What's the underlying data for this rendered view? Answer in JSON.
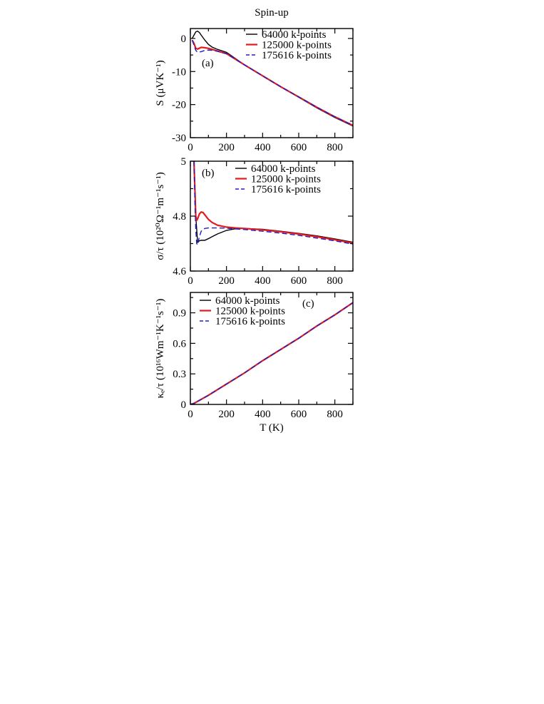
{
  "figure": {
    "title": "Spin-up"
  },
  "colors": {
    "k64000": "#000000",
    "k125000": "#e41a1c",
    "k175616": "#1f1fc8"
  },
  "chart_data": [
    {
      "type": "line",
      "panel_label": "(a)",
      "xlabel": "",
      "ylabel": "S (μVK⁻¹)",
      "xlim": [
        0,
        900
      ],
      "ylim": [
        -30,
        3
      ],
      "xticks": [
        0,
        200,
        400,
        600,
        800
      ],
      "xticklabels": [
        "0",
        "200",
        "400",
        "600",
        "800"
      ],
      "yticks": [
        0,
        -10,
        -20,
        -30
      ],
      "yticklabels": [
        "0",
        "-10",
        "-20",
        "-30"
      ],
      "legend_position": "top-right",
      "series": [
        {
          "name": "64000 k-points",
          "style": "solid",
          "x": [
            10,
            20,
            30,
            40,
            50,
            60,
            80,
            100,
            120,
            150,
            200,
            300,
            400,
            500,
            600,
            700,
            800,
            900
          ],
          "y": [
            0.0,
            1.0,
            2.0,
            2.2,
            1.8,
            1.0,
            -0.5,
            -1.8,
            -2.6,
            -3.3,
            -4.2,
            -8.0,
            -11.3,
            -14.6,
            -17.8,
            -21.0,
            -23.9,
            -26.5
          ]
        },
        {
          "name": "125000 k-points",
          "style": "solid",
          "x": [
            10,
            20,
            30,
            40,
            60,
            80,
            100,
            120,
            150,
            200,
            300,
            400,
            500,
            600,
            700,
            800,
            900
          ],
          "y": [
            -0.5,
            -1.5,
            -3.0,
            -3.2,
            -2.7,
            -2.8,
            -3.0,
            -3.3,
            -3.8,
            -4.6,
            -8.0,
            -11.3,
            -14.6,
            -17.7,
            -20.8,
            -23.7,
            -26.3
          ]
        },
        {
          "name": "175616 k-points",
          "style": "dashed",
          "x": [
            10,
            20,
            30,
            40,
            60,
            80,
            100,
            120,
            150,
            200,
            300,
            400,
            500,
            600,
            700,
            800,
            900
          ],
          "y": [
            -0.5,
            -2.0,
            -3.6,
            -4.2,
            -4.0,
            -3.6,
            -3.5,
            -3.6,
            -3.9,
            -4.6,
            -8.0,
            -11.3,
            -14.6,
            -17.7,
            -20.8,
            -23.7,
            -26.3
          ]
        }
      ]
    },
    {
      "type": "line",
      "panel_label": "(b)",
      "xlabel": "",
      "ylabel": "σ/τ (10²⁰Ω⁻¹m⁻¹s⁻¹)",
      "xlim": [
        0,
        900
      ],
      "ylim": [
        4.6,
        5.0
      ],
      "xticks": [
        0,
        200,
        400,
        600,
        800
      ],
      "xticklabels": [
        "0",
        "200",
        "400",
        "600",
        "800"
      ],
      "yticks": [
        4.6,
        4.8,
        5.0
      ],
      "yticklabels": [
        "4.6",
        "4.8",
        "5"
      ],
      "legend_position": "top-right",
      "series": [
        {
          "name": "64000 k-points",
          "style": "solid",
          "x": [
            20,
            30,
            40,
            50,
            60,
            80,
            100,
            120,
            150,
            200,
            250,
            300,
            400,
            500,
            600,
            700,
            800,
            900
          ],
          "y": [
            5.0,
            4.8,
            4.705,
            4.71,
            4.712,
            4.712,
            4.718,
            4.725,
            4.735,
            4.748,
            4.754,
            4.755,
            4.752,
            4.745,
            4.737,
            4.728,
            4.717,
            4.705
          ]
        },
        {
          "name": "125000 k-points",
          "style": "solid",
          "x": [
            20,
            25,
            30,
            35,
            40,
            50,
            60,
            70,
            80,
            100,
            120,
            150,
            200,
            250,
            300,
            400,
            500,
            600,
            700,
            800,
            900
          ],
          "y": [
            5.0,
            4.9,
            4.8,
            4.785,
            4.79,
            4.808,
            4.815,
            4.813,
            4.805,
            4.788,
            4.777,
            4.767,
            4.76,
            4.757,
            4.755,
            4.75,
            4.743,
            4.735,
            4.725,
            4.714,
            4.702
          ]
        },
        {
          "name": "175616 k-points",
          "style": "dashed",
          "x": [
            20,
            25,
            30,
            35,
            40,
            50,
            60,
            70,
            80,
            100,
            150,
            200,
            300,
            400,
            500,
            600,
            700,
            800,
            900
          ],
          "y": [
            5.0,
            4.85,
            4.75,
            4.7,
            4.695,
            4.725,
            4.745,
            4.752,
            4.755,
            4.757,
            4.757,
            4.756,
            4.751,
            4.745,
            4.738,
            4.73,
            4.72,
            4.71,
            4.698
          ]
        }
      ]
    },
    {
      "type": "line",
      "panel_label": "(c)",
      "xlabel": "T (K)",
      "ylabel": "κₑ/τ (10¹⁶Wm⁻¹K⁻¹s⁻¹)",
      "xlim": [
        0,
        900
      ],
      "ylim": [
        0,
        1.1
      ],
      "xticks": [
        0,
        200,
        400,
        600,
        800
      ],
      "xticklabels": [
        "0",
        "200",
        "400",
        "600",
        "800"
      ],
      "yticks": [
        0,
        0.3,
        0.6,
        0.9
      ],
      "yticklabels": [
        "0",
        "0.3",
        "0.6",
        "0.9"
      ],
      "legend_position": "top-left",
      "series": [
        {
          "name": "64000 k-points",
          "style": "solid",
          "x": [
            0,
            20,
            50,
            100,
            200,
            300,
            400,
            500,
            600,
            700,
            800,
            900
          ],
          "y": [
            0.0,
            0.01,
            0.04,
            0.09,
            0.2,
            0.31,
            0.43,
            0.54,
            0.65,
            0.77,
            0.88,
            1.0
          ]
        },
        {
          "name": "125000 k-points",
          "style": "solid",
          "x": [
            0,
            20,
            50,
            100,
            200,
            300,
            400,
            500,
            600,
            700,
            800,
            900
          ],
          "y": [
            0.0,
            0.01,
            0.04,
            0.09,
            0.2,
            0.31,
            0.43,
            0.54,
            0.65,
            0.77,
            0.88,
            1.0
          ]
        },
        {
          "name": "175616 k-points",
          "style": "dashed",
          "x": [
            0,
            20,
            50,
            100,
            200,
            300,
            400,
            500,
            600,
            700,
            800,
            900
          ],
          "y": [
            0.0,
            0.01,
            0.04,
            0.09,
            0.2,
            0.31,
            0.43,
            0.54,
            0.65,
            0.77,
            0.88,
            1.0
          ]
        }
      ]
    }
  ]
}
